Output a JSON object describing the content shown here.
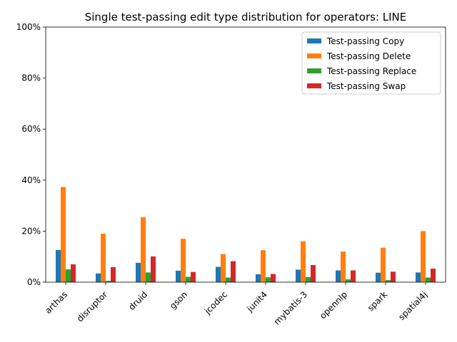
{
  "chart_data": {
    "type": "bar",
    "title": "Single test-passing edit type distribution for operators: LINE",
    "xlabel": "",
    "ylabel": "",
    "ylim": [
      0,
      100
    ],
    "yticks": [
      0,
      20,
      40,
      60,
      80,
      100
    ],
    "ytick_labels": [
      "0%",
      "20%",
      "40%",
      "60%",
      "80%",
      "100%"
    ],
    "categories": [
      "arthas",
      "disruptor",
      "druid",
      "gson",
      "jcodec",
      "junit4",
      "mybatis-3",
      "opennlp",
      "spark",
      "spatial4j"
    ],
    "legend_position": "top-right",
    "grid": false,
    "series": [
      {
        "name": "Test-passing Copy",
        "color": "#1f77b4",
        "values": [
          12.6,
          3.4,
          7.6,
          4.5,
          6.0,
          3.1,
          4.9,
          4.6,
          3.7,
          3.8
        ]
      },
      {
        "name": "Test-passing Delete",
        "color": "#ff7f0e",
        "values": [
          37.3,
          19.0,
          25.5,
          17.0,
          11.0,
          12.5,
          16.0,
          12.0,
          13.5,
          20.0
        ]
      },
      {
        "name": "Test-passing Replace",
        "color": "#2ca02c",
        "values": [
          5.0,
          0.5,
          3.8,
          2.1,
          1.8,
          1.9,
          2.0,
          1.1,
          0.8,
          1.8
        ]
      },
      {
        "name": "Test-passing Swap",
        "color": "#d62728",
        "values": [
          7.0,
          5.9,
          10.1,
          4.0,
          8.2,
          3.2,
          6.7,
          4.6,
          4.1,
          5.3
        ]
      }
    ]
  }
}
